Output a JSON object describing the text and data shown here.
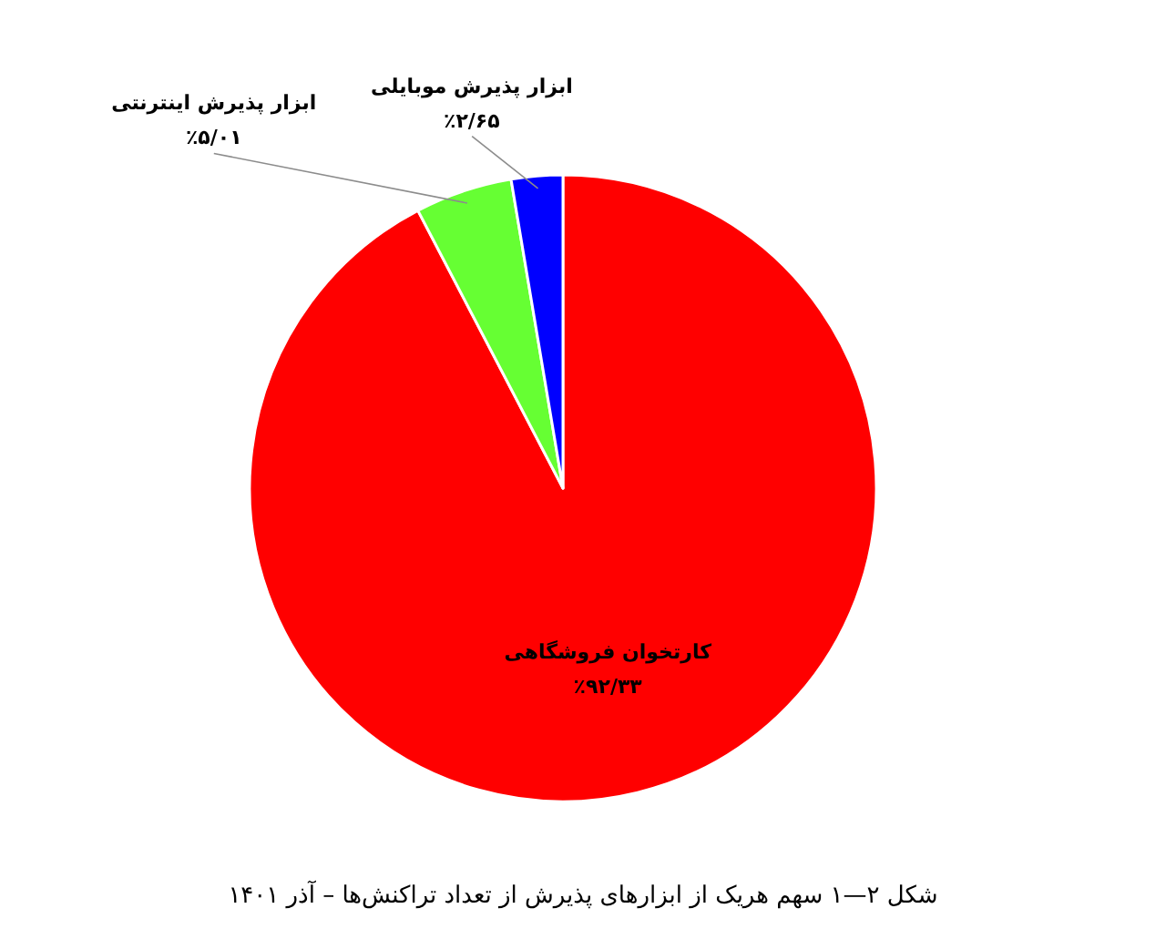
{
  "chart_data": {
    "type": "pie",
    "title": "شکل ۲—۱ سهم هریک از ابزارهای پذیرش از تعداد تراکنش‌ها – آذر ۱۴۰۱",
    "categories": [
      "کارتخوان فروشگاهی",
      "ابزار پذیرش اینترنتی",
      "ابزار پذیرش موبایلی"
    ],
    "values": [
      92.33,
      5.01,
      2.65
    ],
    "colors": [
      "#ff0000",
      "#66ff33",
      "#0000ff"
    ],
    "value_labels": [
      "٪۹۲/۳۳",
      "٪۵/۰۱",
      "٪۲/۶۵"
    ]
  }
}
